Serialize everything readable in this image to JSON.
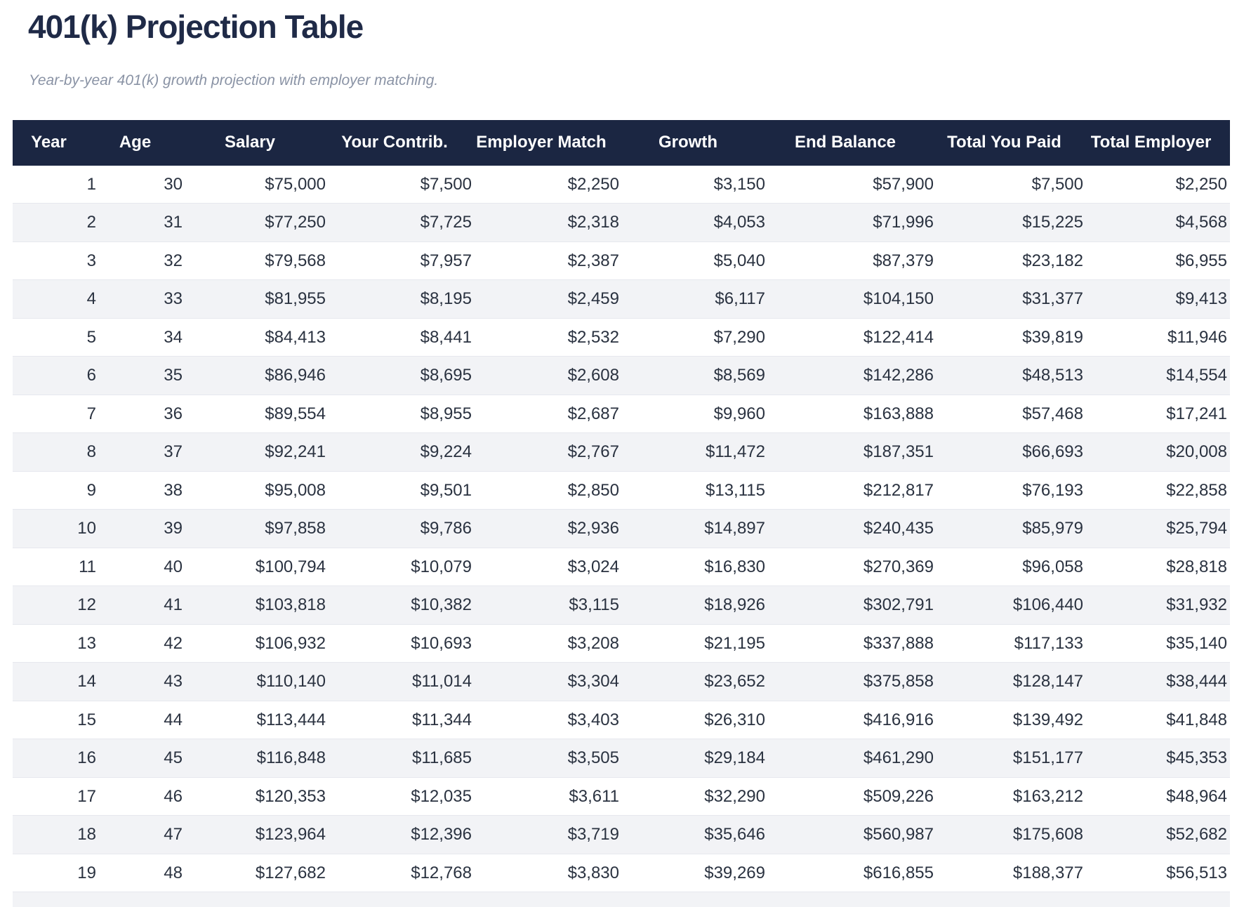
{
  "page": {
    "title": "401(k) Projection Table",
    "subtitle": "Year-by-year 401(k) growth projection with employer matching."
  },
  "colors": {
    "header_bg": "#1b2642",
    "header_text": "#ffffff",
    "title_text": "#1f2a47",
    "subtitle_text": "#8a93a5",
    "row_stripe": "#f2f3f6",
    "row_border": "#e6e8ee",
    "cell_text": "#2a3240"
  },
  "table": {
    "columns": [
      "Year",
      "Age",
      "Salary",
      "Your Contrib.",
      "Employer Match",
      "Growth",
      "End Balance",
      "Total You Paid",
      "Total Employer"
    ],
    "rows": [
      [
        "1",
        "30",
        "$75,000",
        "$7,500",
        "$2,250",
        "$3,150",
        "$57,900",
        "$7,500",
        "$2,250"
      ],
      [
        "2",
        "31",
        "$77,250",
        "$7,725",
        "$2,318",
        "$4,053",
        "$71,996",
        "$15,225",
        "$4,568"
      ],
      [
        "3",
        "32",
        "$79,568",
        "$7,957",
        "$2,387",
        "$5,040",
        "$87,379",
        "$23,182",
        "$6,955"
      ],
      [
        "4",
        "33",
        "$81,955",
        "$8,195",
        "$2,459",
        "$6,117",
        "$104,150",
        "$31,377",
        "$9,413"
      ],
      [
        "5",
        "34",
        "$84,413",
        "$8,441",
        "$2,532",
        "$7,290",
        "$122,414",
        "$39,819",
        "$11,946"
      ],
      [
        "6",
        "35",
        "$86,946",
        "$8,695",
        "$2,608",
        "$8,569",
        "$142,286",
        "$48,513",
        "$14,554"
      ],
      [
        "7",
        "36",
        "$89,554",
        "$8,955",
        "$2,687",
        "$9,960",
        "$163,888",
        "$57,468",
        "$17,241"
      ],
      [
        "8",
        "37",
        "$92,241",
        "$9,224",
        "$2,767",
        "$11,472",
        "$187,351",
        "$66,693",
        "$20,008"
      ],
      [
        "9",
        "38",
        "$95,008",
        "$9,501",
        "$2,850",
        "$13,115",
        "$212,817",
        "$76,193",
        "$22,858"
      ],
      [
        "10",
        "39",
        "$97,858",
        "$9,786",
        "$2,936",
        "$14,897",
        "$240,435",
        "$85,979",
        "$25,794"
      ],
      [
        "11",
        "40",
        "$100,794",
        "$10,079",
        "$3,024",
        "$16,830",
        "$270,369",
        "$96,058",
        "$28,818"
      ],
      [
        "12",
        "41",
        "$103,818",
        "$10,382",
        "$3,115",
        "$18,926",
        "$302,791",
        "$106,440",
        "$31,932"
      ],
      [
        "13",
        "42",
        "$106,932",
        "$10,693",
        "$3,208",
        "$21,195",
        "$337,888",
        "$117,133",
        "$35,140"
      ],
      [
        "14",
        "43",
        "$110,140",
        "$11,014",
        "$3,304",
        "$23,652",
        "$375,858",
        "$128,147",
        "$38,444"
      ],
      [
        "15",
        "44",
        "$113,444",
        "$11,344",
        "$3,403",
        "$26,310",
        "$416,916",
        "$139,492",
        "$41,848"
      ],
      [
        "16",
        "45",
        "$116,848",
        "$11,685",
        "$3,505",
        "$29,184",
        "$461,290",
        "$151,177",
        "$45,353"
      ],
      [
        "17",
        "46",
        "$120,353",
        "$12,035",
        "$3,611",
        "$32,290",
        "$509,226",
        "$163,212",
        "$48,964"
      ],
      [
        "18",
        "47",
        "$123,964",
        "$12,396",
        "$3,719",
        "$35,646",
        "$560,987",
        "$175,608",
        "$52,682"
      ],
      [
        "19",
        "48",
        "$127,682",
        "$12,768",
        "$3,830",
        "$39,269",
        "$616,855",
        "$188,377",
        "$56,513"
      ]
    ]
  }
}
